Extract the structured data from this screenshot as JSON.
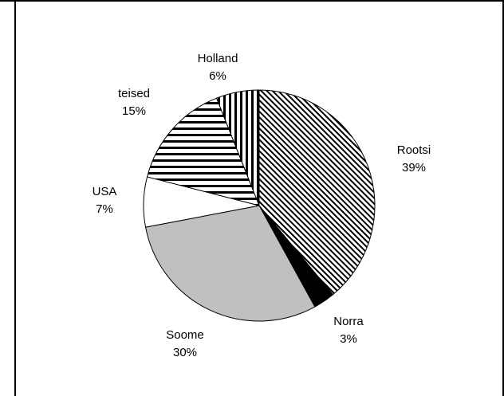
{
  "chart_data": {
    "type": "pie",
    "title": "",
    "slices": [
      {
        "label": "Rootsi",
        "value": 39,
        "display": "39%",
        "pattern": "diag-stripes",
        "color": "#000000"
      },
      {
        "label": "Norra",
        "value": 3,
        "display": "3%",
        "pattern": "solid-black",
        "color": "#000000"
      },
      {
        "label": "Soome",
        "value": 30,
        "display": "30%",
        "pattern": "solid-gray",
        "color": "#c0c0c0"
      },
      {
        "label": "USA",
        "value": 7,
        "display": "7%",
        "pattern": "white",
        "color": "#ffffff"
      },
      {
        "label": "teised",
        "value": 15,
        "display": "15%",
        "pattern": "horizontal-stripes",
        "color": "#000000"
      },
      {
        "label": "Holland",
        "value": 6,
        "display": "6%",
        "pattern": "vertical-stripes",
        "color": "#000000"
      }
    ],
    "legend": "none"
  }
}
